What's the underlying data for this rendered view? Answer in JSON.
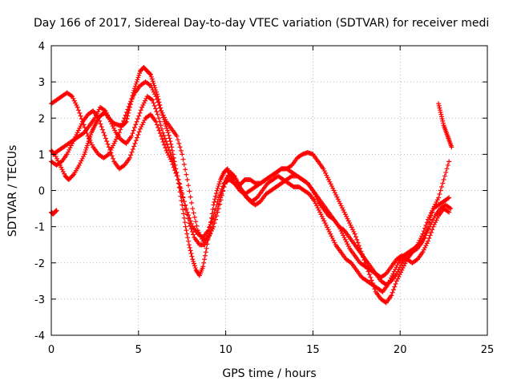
{
  "chart_data": {
    "type": "scatter",
    "title": "Day 166 of 2017, Sidereal Day-to-day VTEC variation (SDTVAR) for receiver medi",
    "xlabel": "GPS time / hours",
    "ylabel": "SDTVAR / TECUs",
    "xlim": [
      0,
      25
    ],
    "ylim": [
      -4,
      4
    ],
    "x_ticks": [
      "0",
      "5",
      "10",
      "15",
      "20",
      "25"
    ],
    "y_ticks": [
      "-4",
      "-3",
      "-2",
      "-1",
      "0",
      "1",
      "2",
      "3",
      "4"
    ],
    "grid": true,
    "marker": "+",
    "color": "#ff0000",
    "series": [
      {
        "x": [
          0.0,
          0.2,
          0.5,
          0.8,
          1.0,
          1.3,
          1.6,
          1.9,
          2.1,
          2.3,
          2.5,
          2.7,
          2.9,
          3.1,
          3.3,
          3.6,
          3.9,
          4.1,
          4.3,
          4.5,
          4.7,
          4.9,
          5.1,
          5.3,
          5.5,
          5.7,
          5.9,
          6.1,
          6.3,
          6.5,
          6.7,
          6.9,
          7.1,
          7.3,
          7.5,
          7.7,
          7.9,
          8.1,
          8.3,
          8.5,
          8.7,
          8.9,
          9.1,
          9.3,
          9.5,
          9.7,
          9.9,
          10.1,
          10.3,
          10.5,
          10.7,
          10.9,
          11.1,
          11.4,
          11.7,
          12.0,
          12.3,
          12.6,
          12.9,
          13.2,
          13.5,
          13.8,
          14.1,
          14.4,
          14.7,
          15.0,
          15.3,
          15.6,
          15.9,
          16.2,
          16.5,
          16.8,
          17.1,
          17.4,
          17.7,
          18.0,
          18.3,
          18.6,
          18.9,
          19.2,
          19.5,
          19.8,
          20.1,
          20.4,
          20.7,
          21.0,
          21.3,
          21.6,
          21.9,
          22.2,
          22.5,
          22.8
        ],
        "y": [
          1.1,
          1.0,
          0.7,
          0.4,
          0.3,
          0.45,
          0.7,
          1.0,
          1.3,
          1.6,
          1.8,
          2.0,
          2.1,
          2.15,
          2.0,
          1.85,
          1.8,
          1.8,
          1.9,
          2.3,
          2.7,
          3.0,
          3.3,
          3.4,
          3.3,
          3.2,
          2.9,
          2.6,
          2.2,
          1.9,
          1.6,
          1.2,
          0.7,
          0.2,
          -0.4,
          -1.0,
          -1.5,
          -1.9,
          -2.2,
          -2.35,
          -2.1,
          -1.6,
          -1.0,
          -0.4,
          0.0,
          0.3,
          0.5,
          0.6,
          0.4,
          0.2,
          0.1,
          0.2,
          0.3,
          0.3,
          0.2,
          0.2,
          0.3,
          0.4,
          0.5,
          0.6,
          0.6,
          0.7,
          0.9,
          1.0,
          1.05,
          1.0,
          0.8,
          0.6,
          0.3,
          0.0,
          -0.3,
          -0.6,
          -0.9,
          -1.2,
          -1.6,
          -2.0,
          -2.4,
          -2.8,
          -3.0,
          -3.1,
          -2.9,
          -2.5,
          -2.2,
          -1.9,
          -1.7,
          -1.6,
          -1.4,
          -1.0,
          -0.5,
          -0.2,
          0.3,
          0.8
        ]
      },
      {
        "x": [
          0.0,
          0.3,
          0.6,
          0.9,
          1.2,
          1.5,
          1.8,
          2.1,
          2.4,
          2.7,
          3.0,
          3.3,
          3.6,
          3.9,
          4.2,
          4.5,
          4.8,
          5.1,
          5.4,
          5.7,
          6.0,
          6.3,
          6.6,
          6.9,
          7.2,
          7.5,
          7.8,
          8.1,
          8.4,
          8.7,
          9.0,
          9.3,
          9.6,
          9.9,
          10.2,
          10.5,
          10.8,
          11.1,
          11.4,
          11.7,
          12.0,
          12.3,
          12.6,
          12.9,
          13.2,
          13.5,
          13.8,
          14.1,
          14.4,
          14.7,
          15.0,
          15.3,
          15.6,
          15.9,
          16.2,
          16.5,
          16.8,
          17.1,
          17.4,
          17.7,
          18.0,
          18.3,
          18.6,
          18.9,
          19.2,
          19.5,
          19.8,
          20.1,
          20.4,
          20.7,
          21.0,
          21.3,
          21.6,
          21.9,
          22.2,
          22.5,
          22.8
        ],
        "y": [
          2.4,
          2.5,
          2.6,
          2.7,
          2.6,
          2.3,
          1.9,
          1.5,
          1.2,
          1.0,
          0.9,
          1.0,
          1.3,
          1.6,
          2.0,
          2.4,
          2.7,
          2.9,
          3.0,
          2.9,
          2.6,
          2.2,
          1.9,
          1.7,
          1.5,
          1.0,
          0.3,
          -0.5,
          -1.1,
          -1.4,
          -1.3,
          -1.0,
          -0.5,
          0.1,
          0.5,
          0.4,
          0.1,
          -0.1,
          -0.3,
          -0.4,
          -0.3,
          -0.1,
          0.0,
          0.1,
          0.2,
          0.3,
          0.4,
          0.4,
          0.3,
          0.2,
          0.0,
          -0.3,
          -0.5,
          -0.7,
          -0.8,
          -1.0,
          -1.3,
          -1.6,
          -1.8,
          -2.0,
          -2.1,
          -2.2,
          -2.3,
          -2.5,
          -2.6,
          -2.5,
          -2.3,
          -2.0,
          -1.8,
          -1.7,
          -1.5,
          -1.2,
          -0.8,
          -0.5,
          -0.4,
          -0.3,
          -0.2
        ]
      },
      {
        "x": [
          0.1,
          0.4,
          0.7,
          1.0,
          1.3,
          1.6,
          1.9,
          2.2,
          2.5,
          2.8,
          3.1,
          3.4,
          3.7,
          4.0,
          4.3,
          4.6,
          4.9,
          5.2,
          5.5,
          5.8,
          6.1,
          6.4,
          6.7,
          7.0,
          7.3,
          7.6,
          7.9,
          8.2,
          8.5,
          8.8,
          9.1,
          9.4,
          9.7,
          10.0,
          10.3,
          10.6,
          10.9,
          11.2,
          11.5,
          11.8,
          12.1,
          12.4,
          12.7,
          13.0,
          13.3,
          13.6,
          13.9,
          14.2,
          14.5,
          14.8,
          15.1,
          15.4,
          15.7,
          16.0,
          16.3,
          16.6,
          16.9,
          17.2,
          17.5,
          17.8,
          18.1,
          18.4,
          18.7,
          19.0,
          19.3,
          19.6,
          19.9,
          20.2,
          20.5,
          20.8,
          21.1,
          21.4,
          21.7,
          22.0,
          22.3,
          22.6,
          22.9
        ],
        "y": [
          1.0,
          1.1,
          1.2,
          1.3,
          1.4,
          1.5,
          1.6,
          1.8,
          2.0,
          2.3,
          2.2,
          1.9,
          1.6,
          1.4,
          1.3,
          1.5,
          1.9,
          2.3,
          2.6,
          2.5,
          2.1,
          1.6,
          1.2,
          0.8,
          0.3,
          -0.3,
          -0.9,
          -1.3,
          -1.5,
          -1.5,
          -1.2,
          -0.7,
          -0.2,
          0.3,
          0.5,
          0.3,
          0.0,
          -0.2,
          -0.3,
          -0.2,
          0.0,
          0.2,
          0.3,
          0.4,
          0.3,
          0.2,
          0.1,
          0.1,
          0.0,
          -0.1,
          -0.3,
          -0.6,
          -0.9,
          -1.2,
          -1.5,
          -1.7,
          -1.9,
          -2.0,
          -2.2,
          -2.4,
          -2.5,
          -2.6,
          -2.7,
          -2.8,
          -2.6,
          -2.3,
          -2.0,
          -1.8,
          -1.7,
          -1.6,
          -1.5,
          -1.3,
          -1.0,
          -0.7,
          -0.5,
          -0.4,
          -0.5
        ]
      },
      {
        "x": [
          0.0,
          0.3,
          0.6,
          0.9,
          1.2,
          1.5,
          1.8,
          2.1,
          2.4,
          2.7,
          3.0,
          3.3,
          3.6,
          3.9,
          4.2,
          4.5,
          4.8,
          5.1,
          5.4,
          5.7,
          6.0,
          6.3,
          6.6,
          6.9,
          7.2,
          7.5,
          7.8,
          8.1,
          8.4,
          8.7,
          9.0,
          9.3,
          9.6,
          9.9,
          10.2,
          10.5,
          10.8,
          11.1,
          11.4,
          11.7,
          12.0,
          12.3,
          12.6,
          12.9,
          13.2,
          13.5,
          13.8,
          14.1,
          14.4,
          14.7,
          15.0,
          15.3,
          15.6,
          15.9,
          16.2,
          16.5,
          16.8,
          17.1,
          17.4,
          17.7,
          18.0,
          18.3,
          18.6,
          18.9,
          19.2,
          19.5,
          19.8,
          20.1,
          20.4,
          20.7,
          21.0,
          21.3,
          21.6,
          21.9,
          22.2,
          22.5,
          22.8
        ],
        "y": [
          0.8,
          0.7,
          0.8,
          1.0,
          1.3,
          1.6,
          1.9,
          2.1,
          2.2,
          2.0,
          1.6,
          1.2,
          0.8,
          0.6,
          0.7,
          0.9,
          1.3,
          1.7,
          2.0,
          2.1,
          1.9,
          1.5,
          1.1,
          0.8,
          0.4,
          -0.1,
          -0.6,
          -1.0,
          -1.2,
          -1.3,
          -1.1,
          -0.7,
          -0.2,
          0.2,
          0.3,
          0.2,
          0.0,
          -0.1,
          0.0,
          0.1,
          0.2,
          0.3,
          0.4,
          0.5,
          0.6,
          0.6,
          0.5,
          0.4,
          0.3,
          0.2,
          0.0,
          -0.2,
          -0.4,
          -0.6,
          -0.8,
          -1.0,
          -1.1,
          -1.3,
          -1.5,
          -1.7,
          -1.9,
          -2.1,
          -2.3,
          -2.4,
          -2.3,
          -2.1,
          -1.9,
          -1.8,
          -1.9,
          -2.0,
          -1.9,
          -1.7,
          -1.4,
          -1.0,
          -0.7,
          -0.5,
          -0.6
        ]
      },
      {
        "x": [
          22.2,
          22.35,
          22.5,
          22.65,
          22.8,
          22.95
        ],
        "y": [
          2.4,
          2.1,
          1.8,
          1.6,
          1.4,
          1.2
        ]
      },
      {
        "x": [
          0.0,
          0.1,
          0.2,
          0.3
        ],
        "y": [
          -0.6,
          -0.65,
          -0.6,
          -0.55
        ]
      }
    ]
  }
}
